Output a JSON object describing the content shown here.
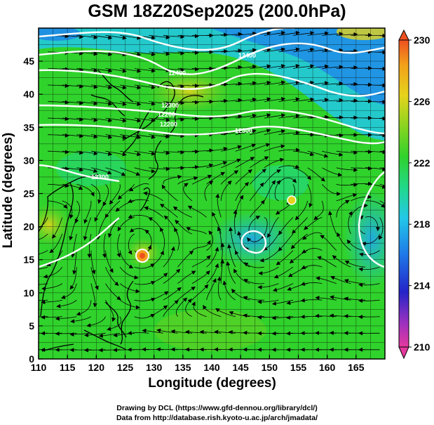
{
  "title": "GSM 18Z20Sep2025 (200.0hPa)",
  "axes": {
    "xlabel": "Longitude (degrees)",
    "ylabel": "Latitude  (degrees)",
    "x_ticks": [
      "110",
      "115",
      "120",
      "125",
      "130",
      "135",
      "140",
      "145",
      "150",
      "155",
      "160",
      "165"
    ],
    "y_ticks": [
      "0",
      "5",
      "10",
      "15",
      "20",
      "25",
      "30",
      "35",
      "40",
      "45"
    ],
    "xlim": [
      110,
      170
    ],
    "ylim": [
      0,
      50
    ]
  },
  "colorbar": {
    "labels": [
      "230",
      "226",
      "222",
      "218",
      "214",
      "210"
    ],
    "range": [
      210,
      230
    ],
    "colors": [
      "#e5399e",
      "#9b30c0",
      "#2424c8",
      "#1f78e8",
      "#22c8e8",
      "#22d88a",
      "#30d22c",
      "#8ad420",
      "#e6d31c",
      "#f2a01a",
      "#ee5020"
    ]
  },
  "map": {
    "field": "temperature (K) with streamlines and height contours",
    "contour_labels": [
      "12400",
      "12300",
      "12200",
      "12200",
      "12300",
      "12300",
      "12400"
    ],
    "typhoon_center": {
      "lon": 127.5,
      "lat": 17.5
    },
    "low_centers": [
      {
        "lon": 147,
        "lat": 19
      },
      {
        "lon": 153,
        "lat": 26.5
      }
    ]
  },
  "credits": {
    "line1": "Drawing by DCL (https://www.gfd-dennou.org/library/dcl/)",
    "line2": "Data from http://database.rish.kyoto-u.ac.jp/arch/jmadata/"
  }
}
